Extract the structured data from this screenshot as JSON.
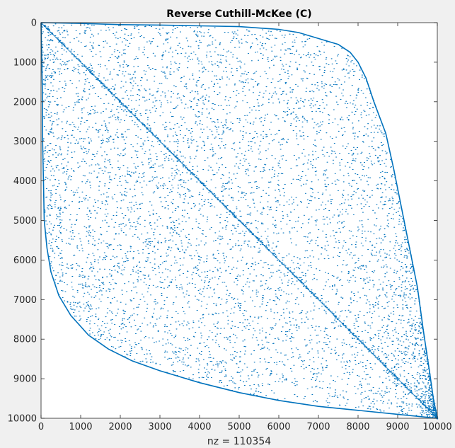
{
  "chart_data": {
    "type": "scatter",
    "plot_kind": "sparsity-pattern (spy)",
    "title": "Reverse Cuthill-McKee (C)",
    "xlabel": "nz = 110354",
    "ylabel": "",
    "matrix_size": 10000,
    "nonzeros": 110354,
    "xlim": [
      0,
      10000
    ],
    "ylim": [
      0,
      10000
    ],
    "y_reversed": true,
    "grid": false,
    "legend": "none",
    "x_ticks": [
      0,
      1000,
      2000,
      3000,
      4000,
      5000,
      6000,
      7000,
      8000,
      9000,
      10000
    ],
    "y_ticks": [
      0,
      1000,
      2000,
      3000,
      4000,
      5000,
      6000,
      7000,
      8000,
      9000,
      10000
    ],
    "x_tick_labels": [
      "0",
      "1000",
      "2000",
      "3000",
      "4000",
      "5000",
      "6000",
      "7000",
      "8000",
      "9000",
      "10000"
    ],
    "y_tick_labels": [
      "0",
      "1000",
      "2000",
      "3000",
      "4000",
      "5000",
      "6000",
      "7000",
      "8000",
      "9000",
      "10000"
    ],
    "diagonal": {
      "from": [
        0,
        0
      ],
      "to": [
        10000,
        10000
      ]
    },
    "profile_upper": [
      [
        0,
        0
      ],
      [
        1000,
        20
      ],
      [
        2000,
        50
      ],
      [
        3000,
        60
      ],
      [
        4000,
        80
      ],
      [
        5000,
        100
      ],
      [
        6000,
        170
      ],
      [
        6500,
        250
      ],
      [
        7000,
        400
      ],
      [
        7500,
        550
      ],
      [
        7800,
        750
      ],
      [
        8000,
        1000
      ],
      [
        8200,
        1400
      ],
      [
        8400,
        2000
      ],
      [
        8700,
        2800
      ],
      [
        8900,
        3700
      ],
      [
        9100,
        4700
      ],
      [
        9300,
        5700
      ],
      [
        9500,
        6700
      ],
      [
        9650,
        7800
      ],
      [
        9800,
        8800
      ],
      [
        9900,
        9500
      ],
      [
        10000,
        10000
      ]
    ],
    "profile_lower": [
      [
        0,
        0
      ],
      [
        20,
        1000
      ],
      [
        40,
        2000
      ],
      [
        40,
        3000
      ],
      [
        60,
        4000
      ],
      [
        80,
        5000
      ],
      [
        150,
        5700
      ],
      [
        250,
        6300
      ],
      [
        450,
        6900
      ],
      [
        750,
        7400
      ],
      [
        1200,
        7900
      ],
      [
        1700,
        8250
      ],
      [
        2300,
        8550
      ],
      [
        3000,
        8800
      ],
      [
        4000,
        9100
      ],
      [
        5000,
        9350
      ],
      [
        6000,
        9550
      ],
      [
        7000,
        9700
      ],
      [
        8000,
        9800
      ],
      [
        9000,
        9900
      ],
      [
        10000,
        10000
      ]
    ],
    "marker_color": "#0072bd",
    "axes_color": "#262626",
    "background_color": "#ffffff"
  }
}
